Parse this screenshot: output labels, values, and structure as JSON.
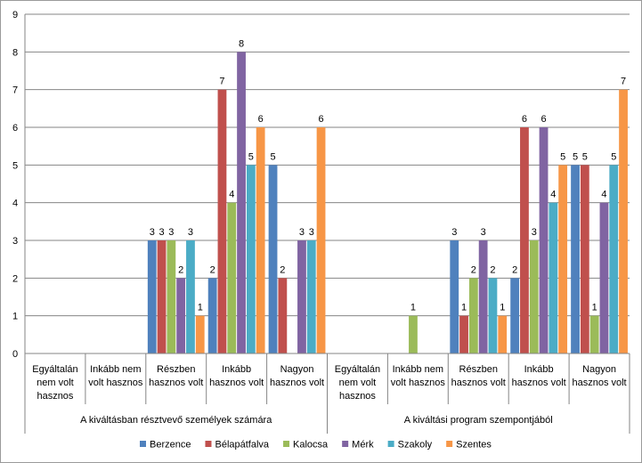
{
  "chart_data": {
    "type": "bar",
    "ylim": [
      0,
      9
    ],
    "yticks": [
      "0",
      "1",
      "2",
      "3",
      "4",
      "5",
      "6",
      "7",
      "8",
      "9"
    ],
    "grid": true,
    "legend_position": "bottom",
    "groups": [
      {
        "label": "A kiváltásban résztvevő személyek számára",
        "categories": [
          [
            "Egyáltalán",
            "nem volt",
            "hasznos"
          ],
          [
            "Inkább nem",
            "volt hasznos"
          ],
          [
            "Részben",
            "hasznos volt"
          ],
          [
            "Inkább",
            "hasznos volt"
          ],
          [
            "Nagyon",
            "hasznos volt"
          ]
        ]
      },
      {
        "label": "A kiváltási program szempontjából",
        "categories": [
          [
            "Egyáltalán",
            "nem volt",
            "hasznos"
          ],
          [
            "Inkább nem",
            "volt hasznos"
          ],
          [
            "Részben",
            "hasznos volt"
          ],
          [
            "Inkább",
            "hasznos volt"
          ],
          [
            "Nagyon",
            "hasznos volt"
          ]
        ]
      }
    ],
    "series": [
      {
        "name": "Berzence",
        "color": "#4F81BD",
        "values": [
          null,
          null,
          3,
          2,
          5,
          null,
          null,
          3,
          2,
          5
        ]
      },
      {
        "name": "Bélapátfalva",
        "color": "#C0504D",
        "values": [
          null,
          null,
          3,
          7,
          2,
          null,
          null,
          1,
          6,
          5
        ]
      },
      {
        "name": "Kalocsa",
        "color": "#9BBB59",
        "values": [
          null,
          null,
          3,
          4,
          null,
          null,
          1,
          2,
          3,
          1
        ]
      },
      {
        "name": "Mérk",
        "color": "#8064A2",
        "values": [
          null,
          null,
          2,
          8,
          3,
          null,
          null,
          3,
          6,
          4
        ]
      },
      {
        "name": "Szakoly",
        "color": "#4BACC6",
        "values": [
          null,
          null,
          3,
          5,
          3,
          null,
          null,
          2,
          4,
          5
        ]
      },
      {
        "name": "Szentes",
        "color": "#F79646",
        "values": [
          null,
          null,
          1,
          6,
          6,
          null,
          null,
          1,
          5,
          7
        ]
      }
    ]
  }
}
